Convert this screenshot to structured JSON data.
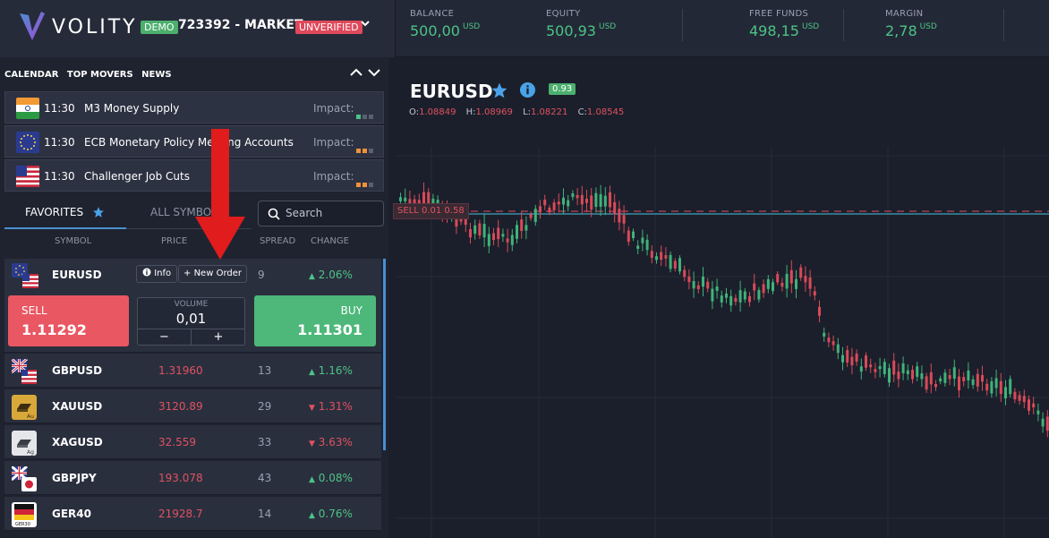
{
  "brand": {
    "name": "VOLITY",
    "demo_label": "DEMO",
    "account": "723392 - MARKET...",
    "unverified": "UNVERIFIED"
  },
  "stats": [
    {
      "label": "BALANCE",
      "value": "500,00",
      "currency": "USD"
    },
    {
      "label": "EQUITY",
      "value": "500,93",
      "currency": "USD"
    },
    {
      "label": "FREE FUNDS",
      "value": "498,15",
      "currency": "USD"
    },
    {
      "label": "MARGIN",
      "value": "2,78",
      "currency": "USD"
    }
  ],
  "news": {
    "tabs": [
      "CALENDAR",
      "TOP MOVERS",
      "NEWS"
    ],
    "items": [
      {
        "flag": "india-flag-icon",
        "time": "11:30",
        "title": "M3 Money Supply",
        "impact_label": "Impact:",
        "impact_level": 1,
        "impact_color": "#4cc485"
      },
      {
        "flag": "eu-flag-icon",
        "time": "11:30",
        "title": "ECB Monetary Policy Meeting Accounts",
        "impact_label": "Impact:",
        "impact_level": 2,
        "impact_color": "#f0913a"
      },
      {
        "flag": "us-flag-icon",
        "time": "11:30",
        "title": "Challenger Job Cuts",
        "impact_label": "Impact:",
        "impact_level": 2,
        "impact_color": "#f0913a"
      }
    ]
  },
  "symbols_panel": {
    "favorites_label": "FAVORITES",
    "all_symbols_label": "ALL SYMBOLS",
    "search_placeholder": "Search",
    "columns": {
      "symbol": "SYMBOL",
      "price": "PRICE",
      "spread": "SPREAD",
      "change": "CHANGE"
    },
    "expanded": {
      "symbol": "EURUSD",
      "info_label": "Info",
      "new_order_label": "New Order",
      "spread": "9",
      "change": "2.06%",
      "sell_label": "SELL",
      "sell_price": "1.11292",
      "buy_label": "BUY",
      "buy_price": "1.11301",
      "volume_label": "VOLUME",
      "volume_value": "0,01",
      "minus": "−",
      "plus": "+"
    },
    "rows": [
      {
        "symbol": "GBPUSD",
        "price": "1.31960",
        "spread": "13",
        "change": "1.16%",
        "dir": "up"
      },
      {
        "symbol": "XAUUSD",
        "price": "3120.89",
        "spread": "29",
        "change": "1.31%",
        "dir": "down"
      },
      {
        "symbol": "XAGUSD",
        "price": "32.559",
        "spread": "33",
        "change": "3.63%",
        "dir": "down"
      },
      {
        "symbol": "GBPJPY",
        "price": "193.078",
        "spread": "43",
        "change": "0.08%",
        "dir": "up"
      },
      {
        "symbol": "GER40",
        "price": "21928.7",
        "spread": "14",
        "change": "0.76%",
        "dir": "up"
      }
    ]
  },
  "chart": {
    "symbol": "EURUSD",
    "badge": "0.93",
    "ohlc": {
      "o_label": "O:",
      "o": "1.08849",
      "h_label": "H:",
      "h": "1.08969",
      "l_label": "L:",
      "l": "1.08221",
      "c_label": "C:",
      "c": "1.08545"
    },
    "sell_tag": "SELL  0.01  0.58"
  },
  "colors": {
    "up": "#4cc485",
    "down": "#e05260",
    "accent": "#4a8fd0"
  }
}
